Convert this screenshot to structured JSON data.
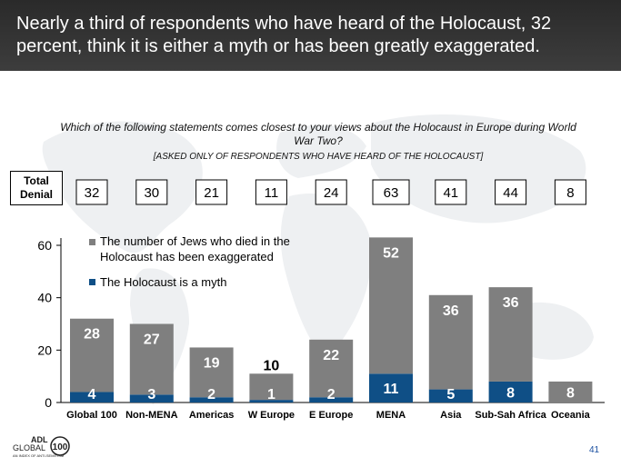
{
  "title": "Nearly a third of respondents who have heard of the Holocaust, 32 percent, think it is either a myth or has been greatly exaggerated.",
  "question": "Which of the following statements comes closest to your views about the Holocaust in Europe during World War Two?",
  "note": "[ASKED ONLY OF RESPONDENTS WHO HAVE HEARD OF THE HOLOCAUST]",
  "total_denial_label_line1": "Total",
  "total_denial_label_line2": "Denial",
  "total_denial": [
    "32",
    "30",
    "21",
    "11",
    "24",
    "63",
    "41",
    "44",
    "8"
  ],
  "logo": {
    "line1": "ADL",
    "line2": "GLOBAL",
    "number": "100",
    "tagline": "AN INDEX OF ANTI-SEMITISM"
  },
  "page_number": "41",
  "colors": {
    "exaggerated": "#7f7f7f",
    "myth": "#0f4f86",
    "header_bg": "#333333"
  },
  "chart_data": {
    "type": "bar",
    "stacked": true,
    "categories": [
      "Global 100",
      "Non-MENA",
      "Americas",
      "W Europe",
      "E Europe",
      "MENA",
      "Asia",
      "Sub-Sah Africa",
      "Oceania"
    ],
    "series": [
      {
        "name": "The Holocaust is a myth",
        "values": [
          4,
          3,
          2,
          1,
          2,
          11,
          5,
          8,
          null
        ]
      },
      {
        "name": "The number of Jews who died in the Holocaust has been exaggerated",
        "values": [
          28,
          27,
          19,
          10,
          22,
          52,
          36,
          36,
          8
        ]
      }
    ],
    "value_labels": {
      "myth": [
        "4",
        "3",
        "2",
        "1",
        "2",
        "11",
        "5",
        "8",
        ""
      ],
      "exaggerated": [
        "28",
        "27",
        "19",
        "10",
        "22",
        "52",
        "36",
        "36",
        "8"
      ]
    },
    "legend": [
      "The number of Jews who died in the Holocaust has been exaggerated",
      "The Holocaust is a myth"
    ],
    "ylim": [
      0,
      65
    ],
    "yticks": [
      0,
      20,
      40,
      60
    ],
    "xlabel": "",
    "ylabel": ""
  }
}
